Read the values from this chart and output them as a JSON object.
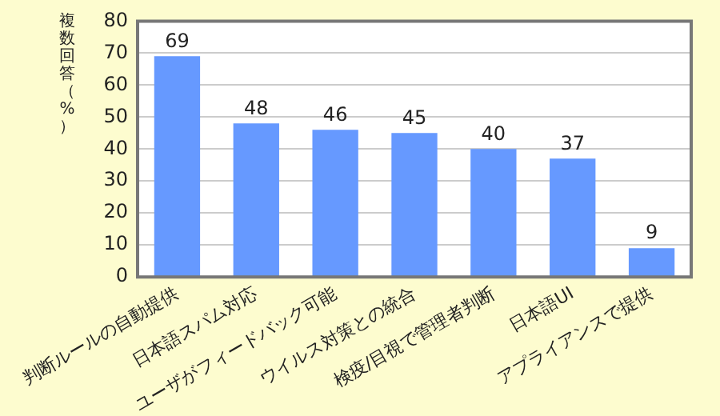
{
  "chart_data": {
    "type": "bar",
    "ylabel": "複数回答（%）",
    "categories": [
      "判断ルールの自動提供",
      "日本語スパム対応",
      "ユーザがフィードバック可能",
      "ウイルス対策との統合",
      "検疫/目視で管理者判断",
      "日本語UI",
      "アプライアンスで提供"
    ],
    "values": [
      69,
      48,
      46,
      45,
      40,
      37,
      9
    ],
    "color": "#6699ff",
    "ylim": [
      0,
      80
    ],
    "yticks": [
      0,
      10,
      20,
      30,
      40,
      50,
      60,
      70,
      80
    ],
    "grid": "y",
    "data_labels": true,
    "legend": false
  }
}
